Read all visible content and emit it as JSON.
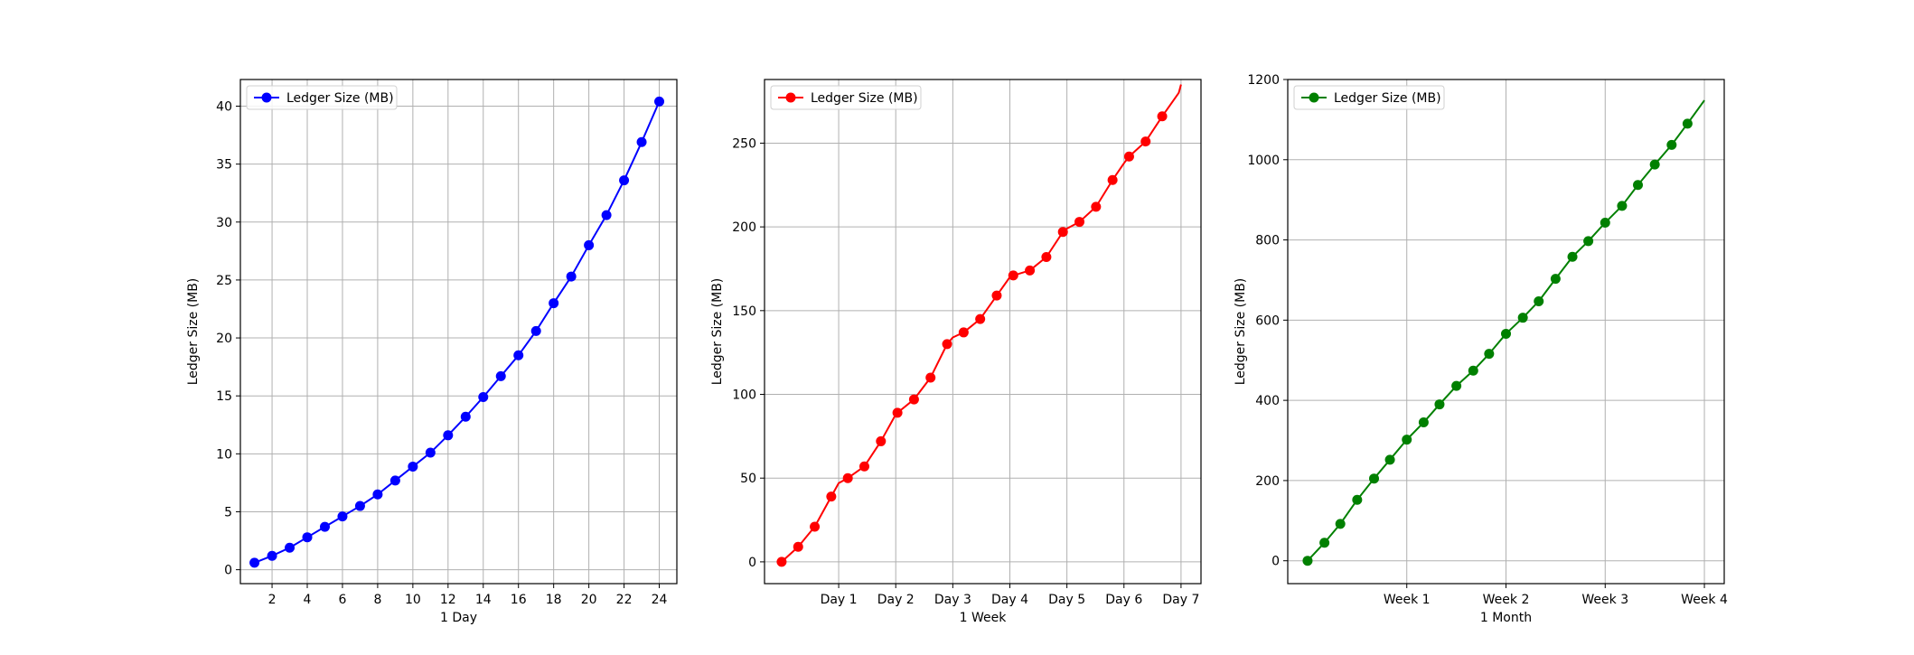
{
  "chart_data": [
    {
      "type": "line",
      "xlabel": "1 Day",
      "ylabel": "Ledger Size (MB)",
      "color": "#0000ff",
      "xlim": [
        0.2,
        25.0
      ],
      "ylim": [
        -1.2,
        42.3
      ],
      "xticks": [
        2,
        4,
        6,
        8,
        10,
        12,
        14,
        16,
        18,
        20,
        22,
        24
      ],
      "xtick_labels": [
        "2",
        "4",
        "6",
        "8",
        "10",
        "12",
        "14",
        "16",
        "18",
        "20",
        "22",
        "24"
      ],
      "yticks": [
        0,
        5,
        10,
        15,
        20,
        25,
        30,
        35,
        40
      ],
      "ytick_labels": [
        "0",
        "5",
        "10",
        "15",
        "20",
        "25",
        "30",
        "35",
        "40"
      ],
      "grid": true,
      "legend": {
        "position": "top-left"
      },
      "series": [
        {
          "name": "Ledger Size (MB)",
          "line_x": [
            1,
            2,
            3,
            4,
            5,
            6,
            7,
            8,
            9,
            10,
            11,
            12,
            13,
            14,
            15,
            16,
            17,
            18,
            19,
            20,
            21,
            22,
            23,
            24
          ],
          "line_y": [
            0.6,
            1.2,
            1.9,
            2.8,
            3.7,
            4.6,
            5.5,
            6.5,
            7.7,
            8.9,
            10.1,
            11.6,
            13.2,
            14.9,
            16.7,
            18.5,
            20.6,
            23.0,
            25.3,
            28.0,
            30.6,
            33.6,
            36.9,
            40.4
          ],
          "marker_x": [
            1,
            2,
            3,
            4,
            5,
            6,
            7,
            8,
            9,
            10,
            11,
            12,
            13,
            14,
            15,
            16,
            17,
            18,
            19,
            20,
            21,
            22,
            23,
            24
          ],
          "marker_y": [
            0.6,
            1.2,
            1.9,
            2.8,
            3.7,
            4.6,
            5.5,
            6.5,
            7.7,
            8.9,
            10.1,
            11.6,
            13.2,
            14.9,
            16.7,
            18.5,
            20.6,
            23.0,
            25.3,
            28.0,
            30.6,
            33.6,
            36.9,
            40.4
          ]
        }
      ]
    },
    {
      "type": "line",
      "xlabel": "1 Week",
      "ylabel": "Ledger Size (MB)",
      "color": "#ff0000",
      "xlim": [
        -0.3,
        7.35
      ],
      "ylim": [
        -13,
        288
      ],
      "xticks": [
        1,
        2,
        3,
        4,
        5,
        6,
        7
      ],
      "xtick_labels": [
        "Day 1",
        "Day 2",
        "Day 3",
        "Day 4",
        "Day 5",
        "Day 6",
        "Day 7"
      ],
      "yticks": [
        0,
        50,
        100,
        150,
        200,
        250
      ],
      "ytick_labels": [
        "0",
        "50",
        "100",
        "150",
        "200",
        "250"
      ],
      "grid": true,
      "legend": {
        "position": "top-left"
      },
      "series": [
        {
          "name": "Ledger Size (MB)",
          "line_x": [
            0.0,
            0.29,
            0.58,
            0.87,
            1.0,
            1.16,
            1.45,
            1.74,
            2.0,
            2.03,
            2.32,
            2.61,
            2.9,
            3.0,
            3.19,
            3.48,
            3.77,
            4.0,
            4.06,
            4.35,
            4.64,
            4.93,
            5.0,
            5.22,
            5.51,
            5.8,
            6.0,
            6.09,
            6.38,
            6.67,
            6.96,
            7.0
          ],
          "line_y": [
            0,
            9,
            21,
            39,
            47,
            50,
            57,
            72,
            88,
            89,
            97,
            110,
            130,
            134,
            137,
            145,
            159,
            170,
            171,
            174,
            182,
            197,
            199,
            203,
            212,
            228,
            238,
            242,
            251,
            266,
            280,
            285
          ],
          "marker_x": [
            0.0,
            0.29,
            0.58,
            0.87,
            1.16,
            1.45,
            1.74,
            2.03,
            2.32,
            2.61,
            2.9,
            3.19,
            3.48,
            3.77,
            4.06,
            4.35,
            4.64,
            4.93,
            5.22,
            5.51,
            5.8,
            6.09,
            6.38,
            6.67
          ],
          "marker_y": [
            0,
            9,
            21,
            39,
            50,
            57,
            72,
            89,
            97,
            110,
            130,
            137,
            145,
            159,
            171,
            174,
            182,
            197,
            203,
            212,
            228,
            242,
            251,
            266
          ]
        }
      ]
    },
    {
      "type": "line",
      "xlabel": "1 Month",
      "ylabel": "Ledger Size (MB)",
      "color": "#008000",
      "xlim": [
        -0.2,
        4.2
      ],
      "ylim": [
        -57,
        1200
      ],
      "xticks": [
        1,
        2,
        3,
        4
      ],
      "xtick_labels": [
        "Week 1",
        "Week 2",
        "Week 3",
        "Week 4"
      ],
      "yticks": [
        0,
        200,
        400,
        600,
        800,
        1000,
        1200
      ],
      "ytick_labels": [
        "0",
        "200",
        "400",
        "600",
        "800",
        "1000",
        "1200"
      ],
      "grid": true,
      "legend": {
        "position": "top-left"
      },
      "series": [
        {
          "name": "Ledger Size (MB)",
          "line_x": [
            0.0,
            0.17,
            0.33,
            0.5,
            0.67,
            0.83,
            1.0,
            1.17,
            1.33,
            1.5,
            1.67,
            1.83,
            2.0,
            2.17,
            2.33,
            2.5,
            2.67,
            2.83,
            3.0,
            3.17,
            3.33,
            3.5,
            3.67,
            3.83,
            4.0
          ],
          "line_y": [
            0,
            45,
            92,
            152,
            205,
            252,
            302,
            345,
            390,
            436,
            474,
            516,
            566,
            606,
            647,
            703,
            758,
            797,
            843,
            885,
            937,
            988,
            1037,
            1090,
            1148
          ],
          "marker_x": [
            0.0,
            0.17,
            0.33,
            0.5,
            0.67,
            0.83,
            1.0,
            1.17,
            1.33,
            1.5,
            1.67,
            1.83,
            2.0,
            2.17,
            2.33,
            2.5,
            2.67,
            2.83,
            3.0,
            3.17,
            3.33,
            3.5,
            3.67,
            3.83
          ],
          "marker_y": [
            0,
            45,
            92,
            152,
            205,
            252,
            302,
            345,
            390,
            436,
            474,
            516,
            566,
            606,
            647,
            703,
            758,
            797,
            843,
            885,
            937,
            988,
            1037,
            1090
          ]
        }
      ]
    }
  ]
}
